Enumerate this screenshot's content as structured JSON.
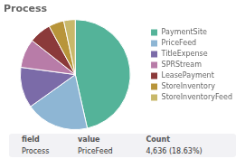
{
  "chart_data": {
    "type": "pie",
    "title": "Process",
    "categories": [
      "PaymentSite",
      "PriceFeed",
      "TitleExpense",
      "SPRStream",
      "LeasePayment",
      "StoreInventory",
      "StoreInventoryFeed"
    ],
    "values": [
      46.5,
      18.63,
      12.0,
      8.5,
      6.5,
      4.5,
      3.37
    ],
    "colors": [
      "#54b399",
      "#8eb6d4",
      "#7b6ba8",
      "#b87ca8",
      "#8b3a3a",
      "#b8953a",
      "#c8b86a"
    ],
    "legend": "right",
    "annotations": [
      [
        "field",
        "value",
        "Count"
      ],
      [
        "Process",
        "PriceFeed",
        "4,636 (18.63%)"
      ]
    ]
  }
}
